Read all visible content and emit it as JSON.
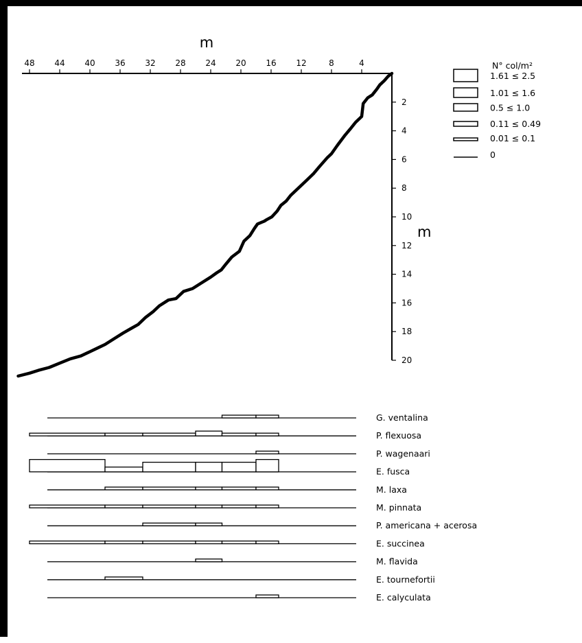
{
  "chart_data": [
    {
      "type": "line",
      "xlabel": "m",
      "ylabel": "m",
      "x_ticks": [
        "48",
        "44",
        "40",
        "36",
        "32",
        "28",
        "24",
        "20",
        "16",
        "12",
        "8",
        "4"
      ],
      "y_ticks": [
        "2",
        "4",
        "6",
        "8",
        "10",
        "12",
        "14",
        "16",
        "18",
        "20"
      ],
      "xlim": [
        0,
        49.5
      ],
      "ylim": [
        0,
        20
      ],
      "x_reversed": true,
      "y_inverted": true,
      "x": [
        0,
        0.5,
        1,
        1.6,
        2.0,
        2.6,
        3.2,
        3.8,
        4.0,
        4.8,
        5.4,
        6.2,
        7.2,
        8.0,
        8.6,
        9.6,
        10.4,
        11.2,
        12.4,
        13.4,
        14.0,
        14.7,
        15.2,
        15.9,
        16.6,
        16.9,
        17.8,
        18.2,
        18.8,
        19.6,
        20.2,
        21.2,
        22.0,
        22.6,
        23.2,
        24.0,
        25.2,
        26.4,
        27.6,
        28.0,
        28.6,
        29.6,
        30.8,
        31.6,
        32.6,
        33.6,
        34.6,
        35.6,
        36.8,
        38.0,
        38.8,
        40.0,
        41.2,
        42.6,
        44.0,
        45.4,
        46.8,
        48.0,
        49.5
      ],
      "y": [
        0,
        0.2,
        0.5,
        0.8,
        1.1,
        1.5,
        1.7,
        2.1,
        3.0,
        3.4,
        3.8,
        4.3,
        5.0,
        5.6,
        5.9,
        6.5,
        7.0,
        7.4,
        8.0,
        8.5,
        8.9,
        9.2,
        9.6,
        10.0,
        10.2,
        10.3,
        10.5,
        10.8,
        11.3,
        11.7,
        12.4,
        12.8,
        13.3,
        13.7,
        13.9,
        14.2,
        14.6,
        15.0,
        15.2,
        15.4,
        15.7,
        15.8,
        16.2,
        16.6,
        17.0,
        17.5,
        17.8,
        18.1,
        18.5,
        18.9,
        19.1,
        19.4,
        19.7,
        19.9,
        20.2,
        20.5,
        20.7,
        20.9,
        21.1
      ]
    },
    {
      "type": "bar",
      "legend_title": "N° col/m²",
      "legend": [
        {
          "label": "1.61 ≤ 2.5",
          "class": 5
        },
        {
          "label": "1.01 ≤ 1.6",
          "class": 4
        },
        {
          "label": "0.5 ≤ 1.0",
          "class": 3
        },
        {
          "label": "0.11 ≤ 0.49",
          "class": 2
        },
        {
          "label": "0.01 ≤ 0.1",
          "class": 1
        },
        {
          "label": "0",
          "class": 0
        }
      ],
      "x_boundaries": [
        48,
        38,
        33,
        26,
        22.5,
        18,
        15
      ],
      "series": [
        {
          "name": "G. ventalina",
          "values": [
            0,
            0,
            0,
            0,
            1,
            1
          ]
        },
        {
          "name": "P. flexuosa",
          "values": [
            1,
            1,
            1,
            2,
            1,
            1
          ]
        },
        {
          "name": "P. wagenaari",
          "values": [
            0,
            0,
            0,
            0,
            0,
            1
          ]
        },
        {
          "name": "E. fusca",
          "values": [
            5,
            2,
            4,
            4,
            4,
            5
          ]
        },
        {
          "name": "M. laxa",
          "values": [
            0,
            1,
            1,
            1,
            1,
            1
          ]
        },
        {
          "name": "M. pinnata",
          "values": [
            1,
            1,
            1,
            1,
            1,
            1
          ]
        },
        {
          "name": "P. americana + acerosa",
          "values": [
            0,
            0,
            1,
            1,
            0,
            0
          ]
        },
        {
          "name": "E. succinea",
          "values": [
            1,
            1,
            1,
            1,
            1,
            1
          ]
        },
        {
          "name": "M. flavida",
          "values": [
            0,
            0,
            0,
            1,
            0,
            0
          ]
        },
        {
          "name": "E. tournefortii",
          "values": [
            0,
            1,
            0,
            0,
            0,
            0
          ]
        },
        {
          "name": "E. calyculata",
          "values": [
            0,
            0,
            0,
            0,
            0,
            1
          ]
        }
      ]
    }
  ]
}
